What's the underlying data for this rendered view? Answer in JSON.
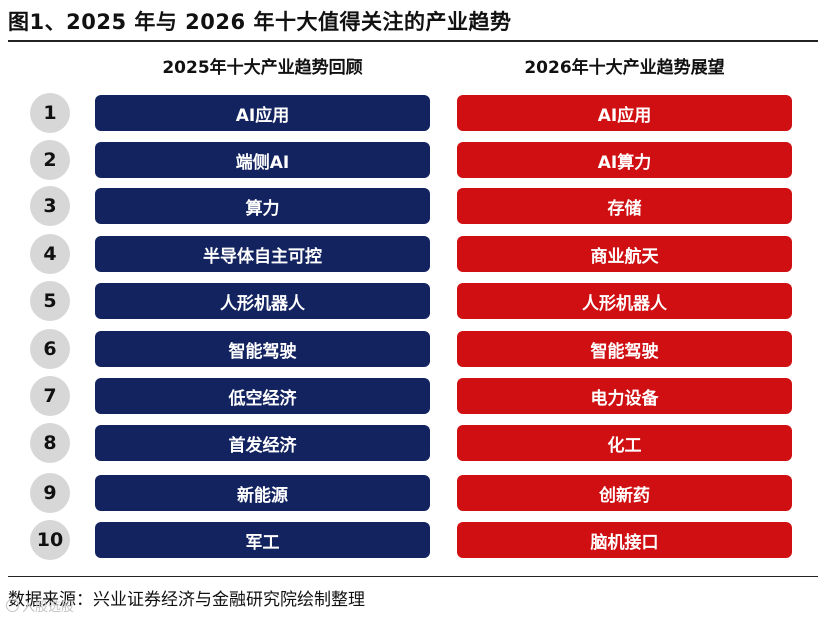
{
  "title": "图1、2025 年与 2026 年十大值得关注的产业趋势",
  "left_header": "2025年十大产业趋势回顾",
  "right_header": "2026年十大产业趋势展望",
  "colors": {
    "left_box": "#12235f",
    "right_box": "#cf0f12",
    "number_circle": "#d7d7d7"
  },
  "rows": [
    {
      "rank": "1",
      "left": "AI应用",
      "right": "AI应用"
    },
    {
      "rank": "2",
      "left": "端侧AI",
      "right": "AI算力"
    },
    {
      "rank": "3",
      "left": "算力",
      "right": "存储"
    },
    {
      "rank": "4",
      "left": "半导体自主可控",
      "right": "商业航天"
    },
    {
      "rank": "5",
      "left": "人形机器人",
      "right": "人形机器人"
    },
    {
      "rank": "6",
      "left": "智能驾驶",
      "right": "智能驾驶"
    },
    {
      "rank": "7",
      "left": "低空经济",
      "right": "电力设备"
    },
    {
      "rank": "8",
      "left": "首发经济",
      "right": "化工"
    },
    {
      "rank": "9",
      "left": "新能源",
      "right": "创新药"
    },
    {
      "rank": "10",
      "left": "军工",
      "right": "脑机接口"
    }
  ],
  "source": "数据来源：兴业证券经济与金融研究院绘制整理",
  "watermark": "入股选股"
}
